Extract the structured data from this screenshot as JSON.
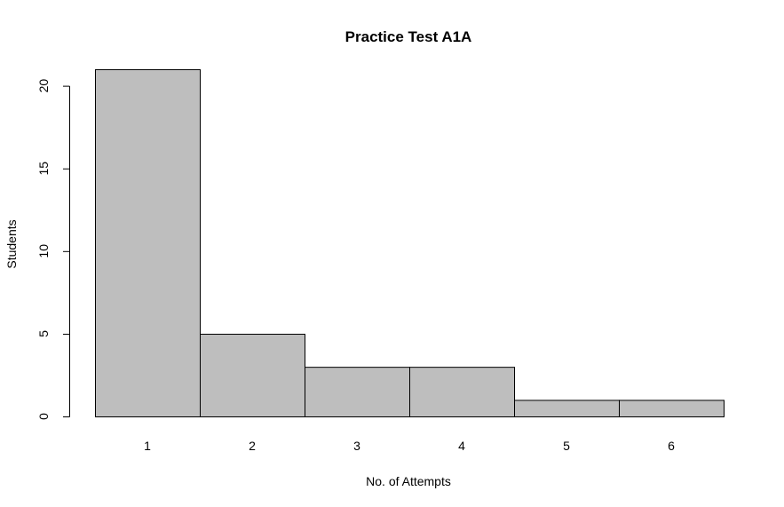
{
  "chart_data": {
    "type": "bar",
    "title": "Practice Test A1A",
    "xlabel": "No. of Attempts",
    "ylabel": "Students",
    "categories": [
      "1",
      "2",
      "3",
      "4",
      "5",
      "6"
    ],
    "values": [
      21,
      5,
      3,
      3,
      1,
      1
    ],
    "ylim": [
      0,
      21
    ],
    "yticks": [
      0,
      5,
      10,
      15,
      20
    ],
    "bar_color": "#bebebe",
    "border_color": "#000000",
    "grid": false,
    "legend": "none"
  }
}
